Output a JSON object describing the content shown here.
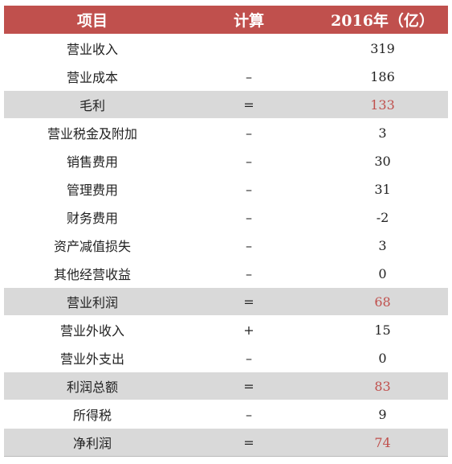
{
  "header": {
    "item": "项目",
    "calc": "计算",
    "year": "2016年（亿）"
  },
  "rows": [
    {
      "item": "营业收入",
      "calc": "",
      "value": "319",
      "highlight": false
    },
    {
      "item": "营业成本",
      "calc": "–",
      "value": "186",
      "highlight": false
    },
    {
      "item": "毛利",
      "calc": "=",
      "value": "133",
      "highlight": true
    },
    {
      "item": "营业税金及附加",
      "calc": "–",
      "value": "3",
      "highlight": false
    },
    {
      "item": "销售费用",
      "calc": "–",
      "value": "30",
      "highlight": false
    },
    {
      "item": "管理费用",
      "calc": "–",
      "value": "31",
      "highlight": false
    },
    {
      "item": "财务费用",
      "calc": "–",
      "value": "-2",
      "highlight": false
    },
    {
      "item": "资产减值损失",
      "calc": "–",
      "value": "3",
      "highlight": false
    },
    {
      "item": "其他经营收益",
      "calc": "–",
      "value": "0",
      "highlight": false
    },
    {
      "item": "营业利润",
      "calc": "=",
      "value": "68",
      "highlight": true
    },
    {
      "item": "营业外收入",
      "calc": "+",
      "value": "15",
      "highlight": false
    },
    {
      "item": "营业外支出",
      "calc": "–",
      "value": "0",
      "highlight": false
    },
    {
      "item": "利润总额",
      "calc": "=",
      "value": "83",
      "highlight": true
    },
    {
      "item": "所得税",
      "calc": "–",
      "value": "9",
      "highlight": false
    },
    {
      "item": "净利润",
      "calc": "=",
      "value": "74",
      "highlight": true
    }
  ],
  "colors": {
    "header_bg": "#c0504d",
    "highlight_bg": "#d9d9d9",
    "highlight_value": "#c0504d"
  }
}
